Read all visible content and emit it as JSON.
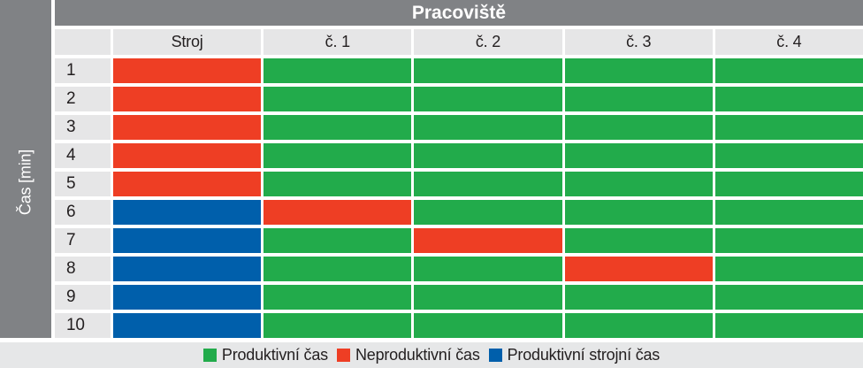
{
  "chart_data": {
    "type": "heatmap",
    "title": "Pracoviště",
    "ylabel": "Čas [min]",
    "columns": [
      "Stroj",
      "č. 1",
      "č. 2",
      "č. 3",
      "č. 4"
    ],
    "rows": [
      "1",
      "2",
      "3",
      "4",
      "5",
      "6",
      "7",
      "8",
      "9",
      "10"
    ],
    "cell_states": [
      [
        "nonproductive",
        "productive",
        "productive",
        "productive",
        "productive"
      ],
      [
        "nonproductive",
        "productive",
        "productive",
        "productive",
        "productive"
      ],
      [
        "nonproductive",
        "productive",
        "productive",
        "productive",
        "productive"
      ],
      [
        "nonproductive",
        "productive",
        "productive",
        "productive",
        "productive"
      ],
      [
        "nonproductive",
        "productive",
        "productive",
        "productive",
        "productive"
      ],
      [
        "machine",
        "nonproductive",
        "productive",
        "productive",
        "productive"
      ],
      [
        "machine",
        "productive",
        "nonproductive",
        "productive",
        "productive"
      ],
      [
        "machine",
        "productive",
        "productive",
        "nonproductive",
        "productive"
      ],
      [
        "machine",
        "productive",
        "productive",
        "productive",
        "productive"
      ],
      [
        "machine",
        "productive",
        "productive",
        "productive",
        "productive"
      ]
    ],
    "state_colors": {
      "productive": "#22ab4b",
      "nonproductive": "#ee3e24",
      "machine": "#005fab"
    },
    "legend": [
      {
        "label": "Produktivní čas",
        "state": "productive"
      },
      {
        "label": "Neproduktivní čas",
        "state": "nonproductive"
      },
      {
        "label": "Produktivní strojní čas",
        "state": "machine"
      }
    ],
    "legend_position": "bottom",
    "colors": {
      "header_bg": "#808285",
      "header_text": "#ffffff",
      "axis_bg": "#808285",
      "axis_text": "#ffffff",
      "cell_bg": "#e6e6e7",
      "label_text": "#231f20",
      "legend_bg": "#e6e7e8",
      "gap": "#ffffff"
    }
  }
}
